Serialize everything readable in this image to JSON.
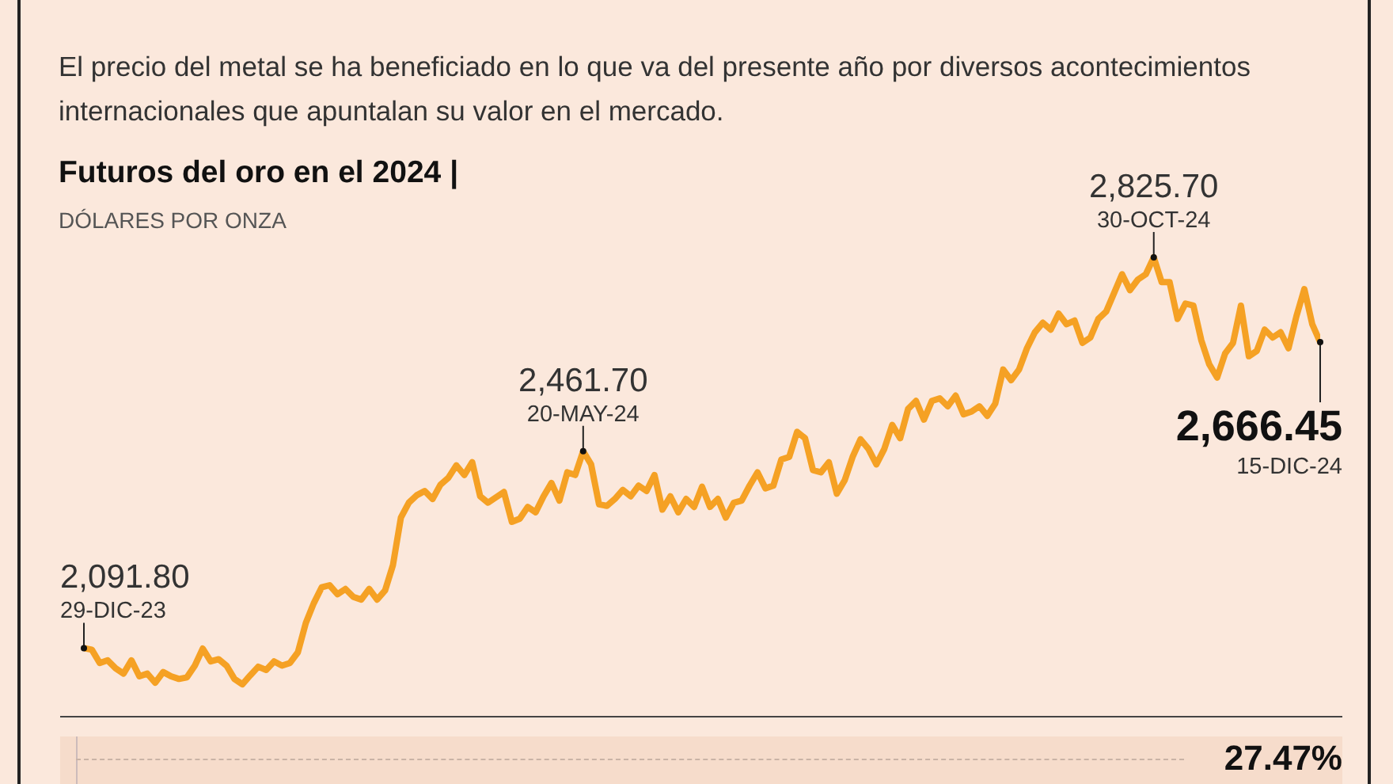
{
  "chart_data": {
    "type": "line",
    "subtitle": "El precio del metal se ha beneficiado en lo que va del presente año por diversos acontecimientos internacionales que apuntalan su valor en el mercado.",
    "title": "Futuros del oro en el 2024 |",
    "ylabel": "DÓLARES POR ONZA",
    "categories": [
      null,
      null,
      null,
      null,
      null,
      null,
      null,
      null,
      null,
      null,
      null,
      null,
      null,
      null,
      null,
      null,
      null,
      null,
      null,
      null,
      null,
      null,
      null,
      null,
      null,
      null,
      null,
      null,
      null,
      null,
      null,
      null,
      null,
      null,
      null,
      null,
      null,
      null,
      null,
      null,
      null,
      null,
      null,
      null,
      null,
      null,
      null,
      null,
      null,
      null,
      null,
      null,
      null,
      null,
      null,
      null,
      null,
      null,
      null,
      null,
      null,
      null,
      null,
      null,
      null,
      null,
      null,
      null,
      null,
      null,
      null,
      null,
      null,
      null,
      null,
      null,
      null,
      null,
      null,
      null,
      null,
      null,
      null,
      null,
      null,
      null,
      null,
      null,
      null,
      null,
      null,
      null,
      null,
      null,
      null,
      null,
      null,
      null,
      null,
      null,
      null,
      null,
      null,
      null,
      null,
      null,
      null,
      null,
      null,
      null,
      null,
      null,
      null,
      null,
      null,
      null,
      null,
      null,
      null,
      null,
      null,
      null,
      null,
      null,
      null,
      null,
      null,
      null,
      null,
      null,
      null,
      null,
      null,
      null,
      null,
      null,
      null,
      null,
      null,
      null,
      null,
      null,
      null,
      null,
      null,
      null,
      null,
      null,
      null,
      null,
      null,
      null,
      null,
      null,
      null,
      null,
      null
    ],
    "series": [
      {
        "color": "#f5a124",
        "values": [
          2091.8,
          2089,
          2064,
          2069,
          2054,
          2044,
          2069,
          2039,
          2044,
          2027,
          2047,
          2039,
          2034,
          2037,
          2059,
          2091,
          2067,
          2071,
          2059,
          2034,
          2024,
          2041,
          2057,
          2051,
          2067,
          2059,
          2064,
          2084,
          2139,
          2176,
          2206,
          2210,
          2193,
          2203,
          2188,
          2183,
          2203,
          2183,
          2200,
          2248,
          2337,
          2365,
          2379,
          2387,
          2372,
          2399,
          2412,
          2435,
          2417,
          2441,
          2377,
          2365,
          2375,
          2385,
          2329,
          2335,
          2357,
          2347,
          2377,
          2402,
          2369,
          2422,
          2417,
          2461.7,
          2437,
          2362,
          2359,
          2372,
          2389,
          2377,
          2397,
          2387,
          2417,
          2352,
          2377,
          2347,
          2372,
          2357,
          2395,
          2357,
          2372,
          2337,
          2365,
          2369,
          2397,
          2422,
          2392,
          2397,
          2446,
          2451,
          2498,
          2486,
          2426,
          2422,
          2441,
          2382,
          2407,
          2451,
          2484,
          2466,
          2437,
          2466,
          2511,
          2486,
          2541,
          2556,
          2521,
          2556,
          2561,
          2546,
          2566,
          2531,
          2536,
          2546,
          2528,
          2551,
          2615,
          2595,
          2615,
          2655,
          2685,
          2703,
          2690,
          2720,
          2700,
          2707,
          2665,
          2675,
          2710,
          2724,
          2759,
          2794,
          2764,
          2784,
          2794,
          2825.7,
          2779,
          2779,
          2710,
          2739,
          2735,
          2670,
          2625,
          2600,
          2645,
          2665,
          2735,
          2640,
          2650,
          2690,
          2675,
          2685,
          2655,
          2715,
          2766,
          2700,
          2666.45
        ],
        "value_labels": [
          "2,091.80",
          null,
          null,
          null,
          null,
          null,
          null,
          null,
          null,
          null,
          null,
          null,
          null,
          null,
          null,
          null,
          null,
          null,
          null,
          null,
          null,
          null,
          null,
          null,
          null,
          null,
          null,
          null,
          null,
          null,
          null,
          null,
          null,
          null,
          null,
          null,
          null,
          null,
          null,
          null,
          null,
          null,
          null,
          null,
          null,
          null,
          null,
          null,
          null,
          null,
          null,
          null,
          null,
          null,
          null,
          null,
          null,
          null,
          null,
          null,
          null,
          null,
          null,
          "2,461.70",
          null,
          null,
          null,
          null,
          null,
          null,
          null,
          null,
          null,
          null,
          null,
          null,
          null,
          null,
          null,
          null,
          null,
          null,
          null,
          null,
          null,
          null,
          null,
          null,
          null,
          null,
          null,
          null,
          null,
          null,
          null,
          null,
          null,
          null,
          null,
          null,
          null,
          null,
          null,
          null,
          null,
          null,
          null,
          null,
          null,
          null,
          null,
          null,
          null,
          null,
          null,
          null,
          null,
          null,
          null,
          null,
          null,
          null,
          null,
          null,
          null,
          null,
          null,
          null,
          null,
          null,
          null,
          null,
          null,
          null,
          null,
          "2,825.70",
          null,
          null,
          null,
          null,
          null,
          null,
          null,
          null,
          null,
          null,
          null,
          null,
          null,
          null,
          null,
          null,
          null,
          null,
          null,
          null,
          "2,666.45"
        ]
      }
    ],
    "annotations": [
      "29-DIC-23",
      "20-MAY-24",
      "30-OCT-24",
      "15-DIC-24",
      "27.47%"
    ],
    "grid": false,
    "legend": false,
    "marker": "none",
    "line_style": "solid"
  }
}
